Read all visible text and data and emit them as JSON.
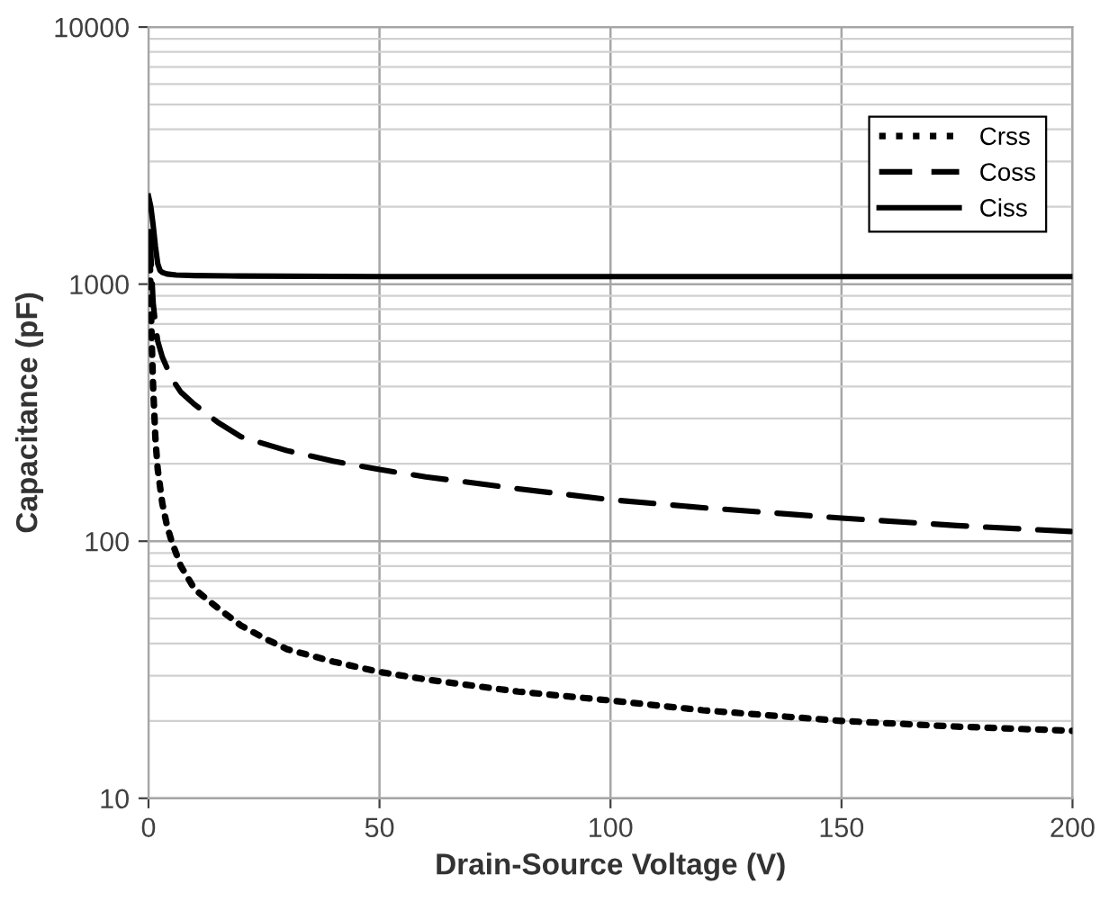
{
  "chart_data": {
    "type": "line",
    "xlabel": "Drain-Source Voltage (V)",
    "ylabel": "Capacitance (pF)",
    "log": "y",
    "xlim": [
      0,
      200
    ],
    "xticks": [
      0,
      50,
      100,
      150,
      200
    ],
    "ylim": [
      10,
      10000
    ],
    "yticks": [
      10,
      100,
      1000,
      10000
    ],
    "grid": true,
    "legend": "top right",
    "marker": "none",
    "series": [
      {
        "name": "Crss",
        "color": "#000000",
        "line_style": "dotted",
        "x": [
          0.3,
          0.7,
          1,
          1.5,
          2,
          3,
          4,
          5,
          7,
          10,
          15,
          20,
          25,
          30,
          40,
          50,
          60,
          80,
          100,
          120,
          150,
          175,
          200
        ],
        "values": [
          1200,
          600,
          400,
          250,
          190,
          140,
          115,
          100,
          80,
          65,
          55,
          47,
          42,
          38,
          34,
          31,
          29,
          26,
          24,
          22,
          20,
          19,
          18.3
        ]
      },
      {
        "name": "Coss",
        "color": "#000000",
        "line_style": "dashed",
        "x": [
          0.3,
          0.7,
          1,
          1.5,
          2,
          3,
          5,
          7,
          10,
          15,
          20,
          30,
          40,
          50,
          60,
          80,
          100,
          120,
          150,
          175,
          200
        ],
        "values": [
          1600,
          1100,
          850,
          700,
          600,
          520,
          430,
          380,
          340,
          290,
          255,
          225,
          205,
          190,
          178,
          160,
          145,
          135,
          123,
          115,
          109
        ]
      },
      {
        "name": "Ciss",
        "color": "#000000",
        "line_style": "solid",
        "x": [
          0,
          0.5,
          1,
          1.5,
          2,
          2.5,
          3,
          4,
          6,
          10,
          20,
          50,
          100,
          150,
          200
        ],
        "values": [
          2200,
          2000,
          1700,
          1400,
          1200,
          1130,
          1110,
          1095,
          1085,
          1080,
          1075,
          1070,
          1070,
          1070,
          1070
        ]
      }
    ]
  }
}
